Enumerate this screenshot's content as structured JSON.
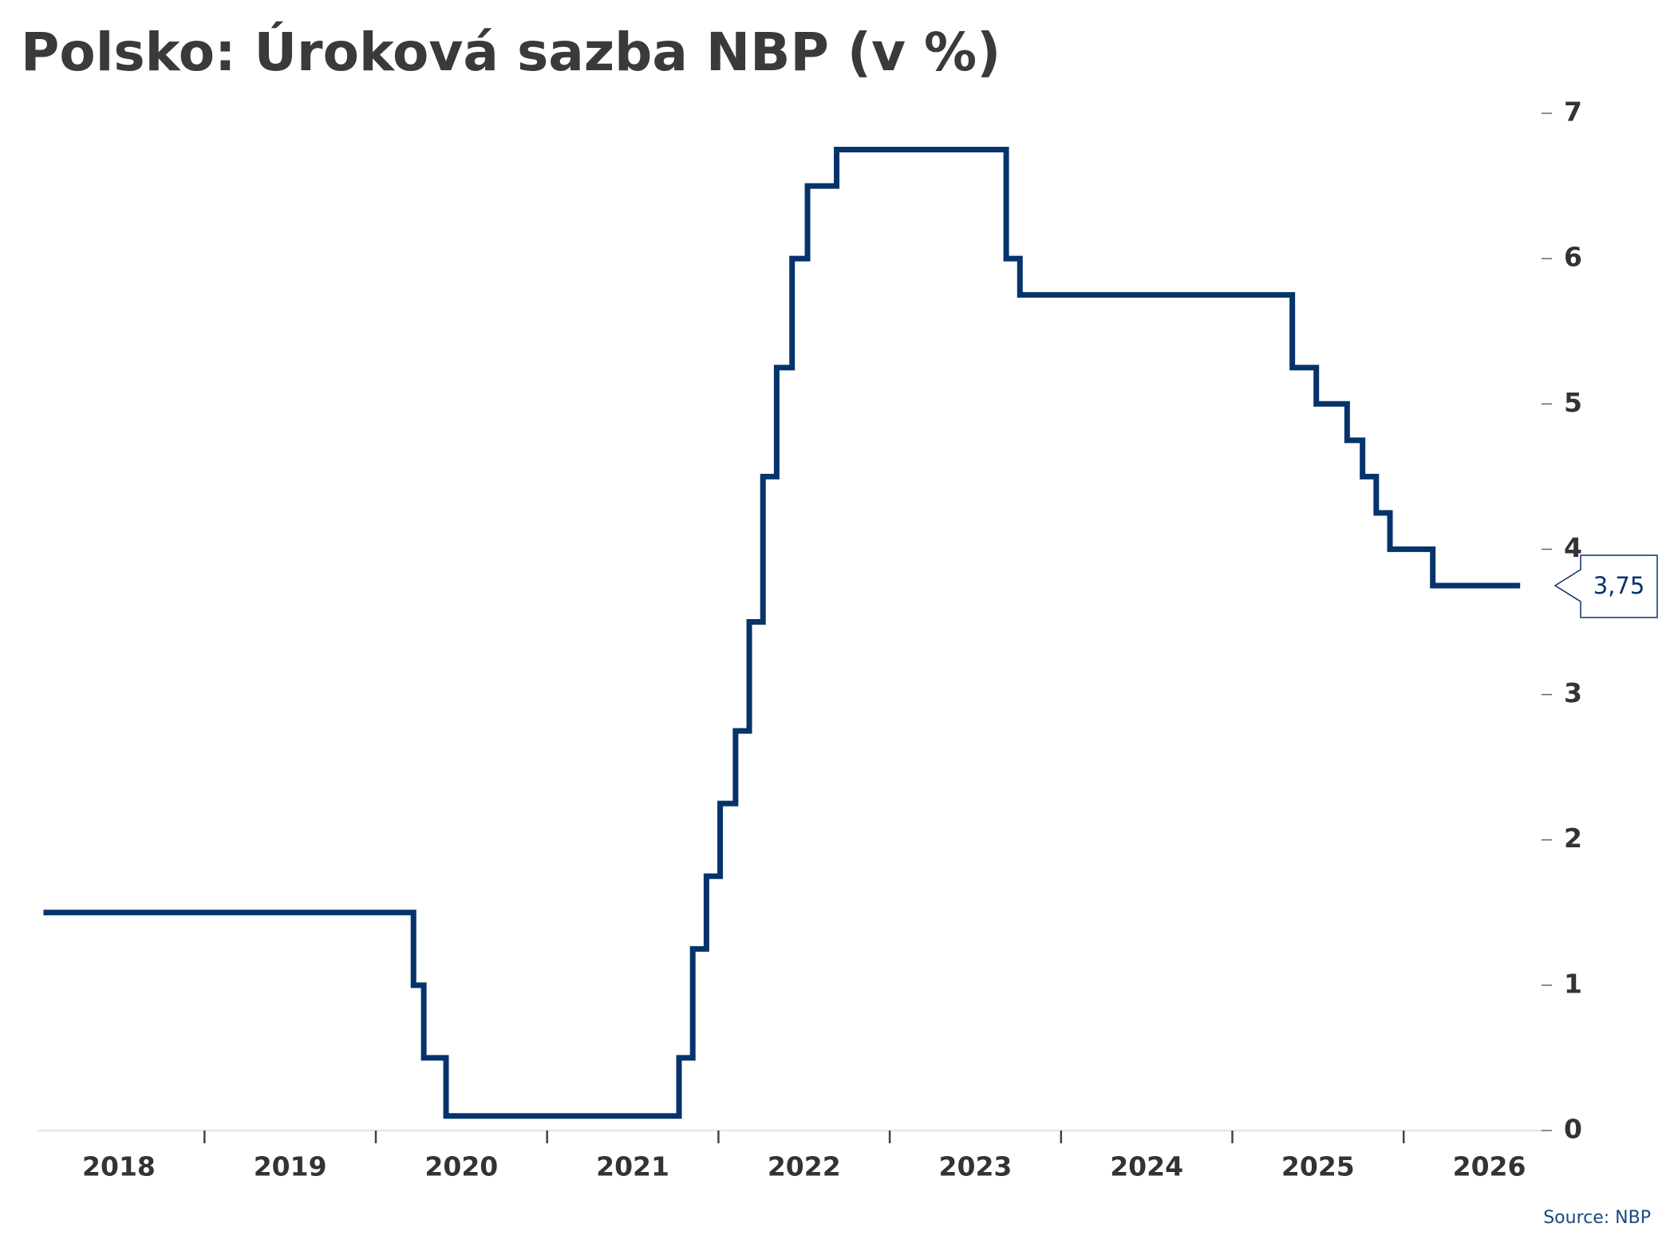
{
  "chart_data": {
    "type": "step-line",
    "title": "Polsko: Úroková sazba NBP (v %)",
    "source": "Source: NBP",
    "x": [
      2018.06,
      2020.22,
      2020.28,
      2020.41,
      2021.77,
      2021.85,
      2021.93,
      2022.01,
      2022.1,
      2022.18,
      2022.26,
      2022.34,
      2022.43,
      2022.52,
      2022.69,
      2023.68,
      2023.76,
      2025.35,
      2025.49,
      2025.67,
      2025.76,
      2025.84,
      2025.92,
      2026.17,
      2026.68
    ],
    "series": [
      {
        "name": "NBP",
        "color": "#06336b",
        "values": [
          1.5,
          1.0,
          0.5,
          0.1,
          0.5,
          1.25,
          1.75,
          2.25,
          2.75,
          3.5,
          4.5,
          5.25,
          6.0,
          6.5,
          6.75,
          6.0,
          5.75,
          5.25,
          5.0,
          4.75,
          4.5,
          4.25,
          4.0,
          3.75,
          3.75
        ],
        "value_labels": [
          null,
          null,
          null,
          null,
          null,
          null,
          null,
          null,
          null,
          null,
          null,
          null,
          null,
          null,
          null,
          null,
          null,
          null,
          null,
          null,
          null,
          null,
          null,
          null,
          "3,75"
        ]
      }
    ],
    "xlim": [
      2018,
      2026.95
    ],
    "xticks": [
      {
        "value": 2018.5,
        "label": "2018"
      },
      {
        "value": 2019.5,
        "label": "2019"
      },
      {
        "value": 2020.5,
        "label": "2020"
      },
      {
        "value": 2021.5,
        "label": "2021"
      },
      {
        "value": 2022.5,
        "label": "2022"
      },
      {
        "value": 2023.5,
        "label": "2023"
      },
      {
        "value": 2024.5,
        "label": "2024"
      },
      {
        "value": 2025.5,
        "label": "2025"
      },
      {
        "value": 2026.5,
        "label": "2026"
      }
    ],
    "xtick_marks": [
      2019,
      2020,
      2021,
      2022,
      2023,
      2024,
      2025,
      2026
    ],
    "ylim": [
      0,
      7
    ],
    "yticks": [
      0,
      1,
      2,
      3,
      4,
      5,
      6,
      7
    ],
    "y_axis_side": "right"
  }
}
